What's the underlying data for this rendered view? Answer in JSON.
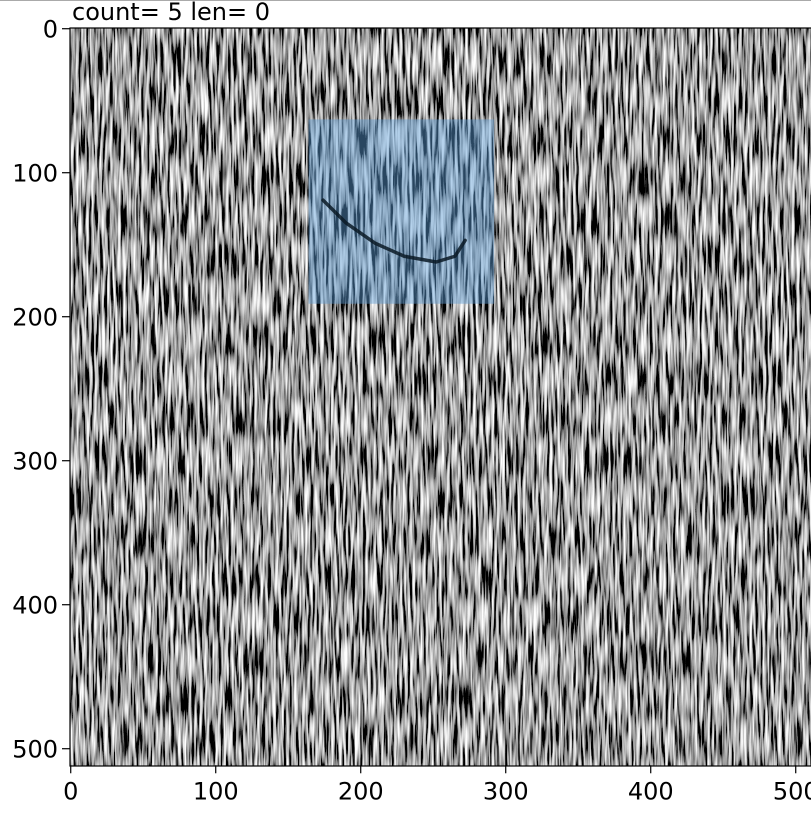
{
  "chart_data": {
    "type": "image",
    "title": "count= 5  len= 0",
    "xlim": [
      -0.5,
      511.5
    ],
    "ylim": [
      511.5,
      -0.5
    ],
    "xticks": [
      0,
      100,
      200,
      300,
      400,
      500
    ],
    "yticks": [
      0,
      100,
      200,
      300,
      400,
      500
    ],
    "selection": {
      "x": [
        164,
        292
      ],
      "y": [
        63,
        191
      ],
      "color": "#5b9bd5"
    },
    "curve": {
      "x": [
        174,
        190,
        210,
        230,
        252,
        265,
        272
      ],
      "y": [
        119,
        135,
        149,
        158,
        162,
        158,
        147
      ],
      "color": "#0b1a26"
    }
  }
}
